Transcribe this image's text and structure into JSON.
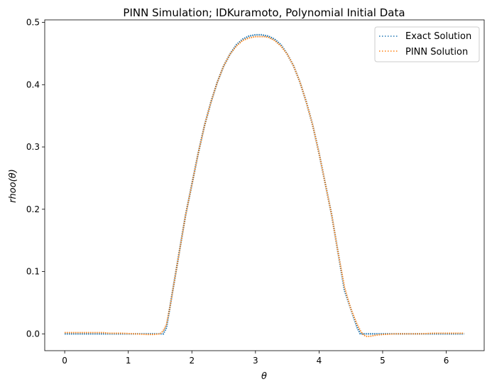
{
  "chart_data": {
    "type": "line",
    "title": "PINN Simulation; IDKuramoto, Polynomial Initial Data",
    "xlabel": "θ",
    "ylabel": "rhoo(θ)",
    "xlim": [
      -0.314,
      6.597
    ],
    "ylim": [
      -0.027,
      0.504
    ],
    "xticks": [
      0,
      1,
      2,
      3,
      4,
      5,
      6
    ],
    "yticks": [
      0.0,
      0.1,
      0.2,
      0.3,
      0.4,
      0.5
    ],
    "grid": false,
    "legend": {
      "position": "top-right",
      "entries": [
        "Exact Solution",
        "PINN Solution"
      ]
    },
    "series": [
      {
        "name": "Exact Solution",
        "color": "#1f77b4",
        "style": "dotted",
        "x": [
          0.0,
          0.2,
          0.4,
          0.6,
          0.8,
          1.0,
          1.2,
          1.4,
          1.5,
          1.55,
          1.6,
          1.65,
          1.7,
          1.8,
          1.9,
          2.0,
          2.1,
          2.2,
          2.3,
          2.4,
          2.5,
          2.6,
          2.7,
          2.8,
          2.9,
          3.0,
          3.1,
          3.14,
          3.2,
          3.3,
          3.4,
          3.5,
          3.6,
          3.7,
          3.8,
          3.9,
          4.0,
          4.1,
          4.2,
          4.3,
          4.4,
          4.5,
          4.6,
          4.65,
          4.7,
          4.75,
          4.8,
          4.9,
          5.0,
          5.2,
          5.4,
          5.6,
          5.8,
          6.0,
          6.2,
          6.28
        ],
        "y": [
          0.0,
          0.0,
          0.0,
          0.0,
          0.0,
          0.0,
          0.0,
          0.0,
          0.0,
          0.0,
          0.01,
          0.04,
          0.07,
          0.13,
          0.19,
          0.24,
          0.29,
          0.335,
          0.372,
          0.404,
          0.43,
          0.449,
          0.464,
          0.473,
          0.478,
          0.48,
          0.48,
          0.479,
          0.478,
          0.473,
          0.464,
          0.449,
          0.43,
          0.404,
          0.372,
          0.335,
          0.29,
          0.24,
          0.19,
          0.13,
          0.07,
          0.04,
          0.01,
          0.0,
          0.0,
          0.0,
          0.0,
          0.0,
          0.0,
          0.0,
          0.0,
          0.0,
          0.0,
          0.0,
          0.0,
          0.0
        ]
      },
      {
        "name": "PINN Solution",
        "color": "#ff7f0e",
        "style": "dotted",
        "x": [
          0.0,
          0.2,
          0.4,
          0.6,
          0.7,
          0.9,
          1.1,
          1.3,
          1.4,
          1.5,
          1.55,
          1.6,
          1.65,
          1.7,
          1.8,
          1.9,
          2.0,
          2.1,
          2.2,
          2.3,
          2.4,
          2.5,
          2.6,
          2.7,
          2.8,
          2.9,
          3.0,
          3.1,
          3.14,
          3.2,
          3.3,
          3.4,
          3.5,
          3.6,
          3.7,
          3.8,
          3.9,
          4.0,
          4.1,
          4.2,
          4.3,
          4.4,
          4.5,
          4.6,
          4.65,
          4.7,
          4.75,
          4.8,
          4.85,
          4.9,
          5.0,
          5.2,
          5.4,
          5.6,
          5.8,
          6.0,
          6.2,
          6.28
        ],
        "y": [
          0.002,
          0.002,
          0.002,
          0.002,
          0.001,
          0.001,
          0.0,
          -0.001,
          -0.001,
          0.0,
          0.005,
          0.015,
          0.04,
          0.07,
          0.13,
          0.19,
          0.24,
          0.29,
          0.335,
          0.372,
          0.404,
          0.43,
          0.449,
          0.462,
          0.471,
          0.475,
          0.477,
          0.477,
          0.477,
          0.476,
          0.471,
          0.462,
          0.449,
          0.43,
          0.404,
          0.372,
          0.335,
          0.29,
          0.24,
          0.19,
          0.13,
          0.075,
          0.04,
          0.015,
          0.005,
          -0.002,
          -0.004,
          -0.004,
          -0.003,
          -0.002,
          -0.001,
          0.0,
          0.0,
          0.0,
          0.001,
          0.001,
          0.001,
          0.001
        ]
      }
    ]
  }
}
